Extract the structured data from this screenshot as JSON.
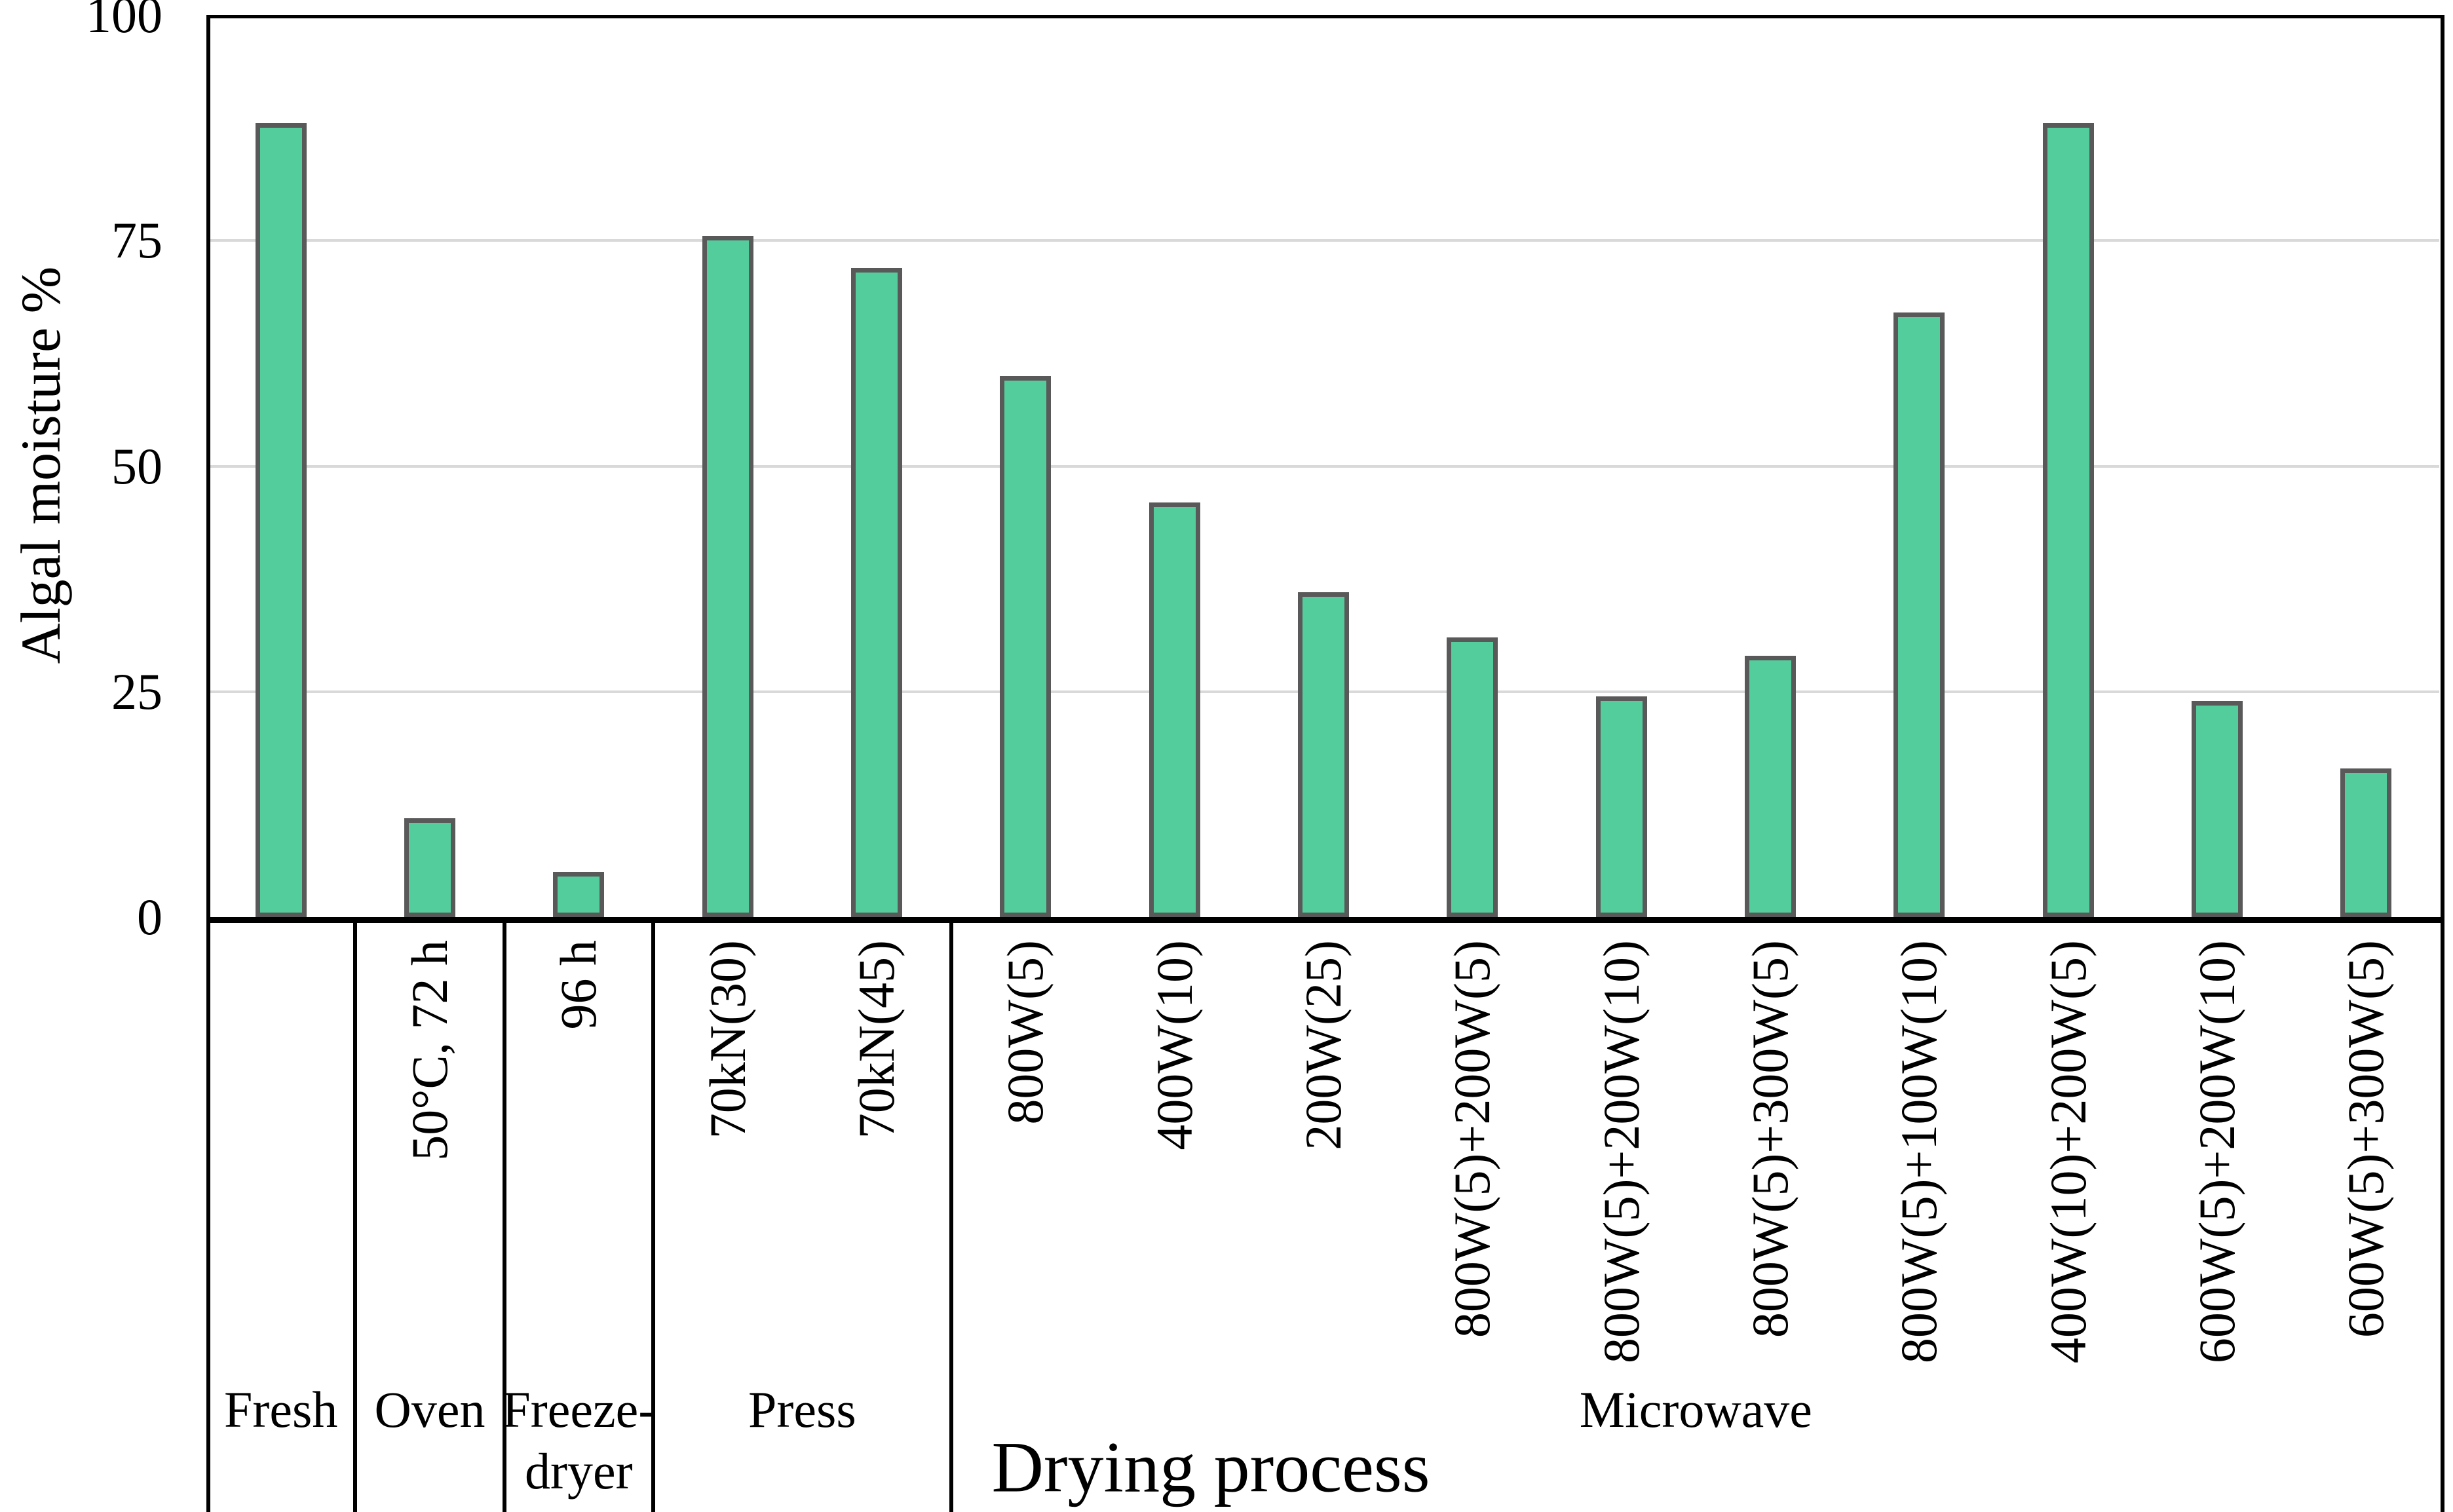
{
  "chart_data": {
    "type": "bar",
    "title": "",
    "ylabel": "Algal moisture %",
    "xlabel": "Drying process",
    "ylim": [
      0,
      100
    ],
    "yticks": [
      0,
      25,
      50,
      75,
      100
    ],
    "grid": "horizontal",
    "legend": "none",
    "bar_fill_color": "#54cd9d",
    "bar_border_color": "#595959",
    "gridline_color": "#d9d9d9",
    "axis_color": "#000000",
    "groups": [
      {
        "label": "Fresh",
        "wrap": false,
        "bars": [
          {
            "label": "",
            "value": 88
          }
        ]
      },
      {
        "label": "Oven",
        "wrap": false,
        "bars": [
          {
            "label": "50°C, 72 h",
            "value": 11
          }
        ]
      },
      {
        "label": "Freeze-dryer",
        "wrap": true,
        "bars": [
          {
            "label": "96 h",
            "value": 5
          }
        ]
      },
      {
        "label": "Press",
        "wrap": false,
        "bars": [
          {
            "label": "70kN(30)",
            "value": 75.5
          },
          {
            "label": "70kN(45)",
            "value": 72
          }
        ]
      },
      {
        "label": "Microwave",
        "wrap": false,
        "bars": [
          {
            "label": "800W(5)",
            "value": 60
          },
          {
            "label": "400W(10)",
            "value": 46
          },
          {
            "label": "200W(25)",
            "value": 36
          },
          {
            "label": "800W(5)+200W(5)",
            "value": 31
          },
          {
            "label": "800W(5)+200W(10)",
            "value": 24.5
          },
          {
            "label": "800W(5)+300W(5)",
            "value": 29
          },
          {
            "label": "800W(5)+100W(10)",
            "value": 67
          },
          {
            "label": "400W(10)+200W(5)",
            "value": 88
          },
          {
            "label": "600W(5)+200W(10)",
            "value": 24
          },
          {
            "label": "600W(5)+300W(5)",
            "value": 16.5
          }
        ]
      }
    ]
  }
}
